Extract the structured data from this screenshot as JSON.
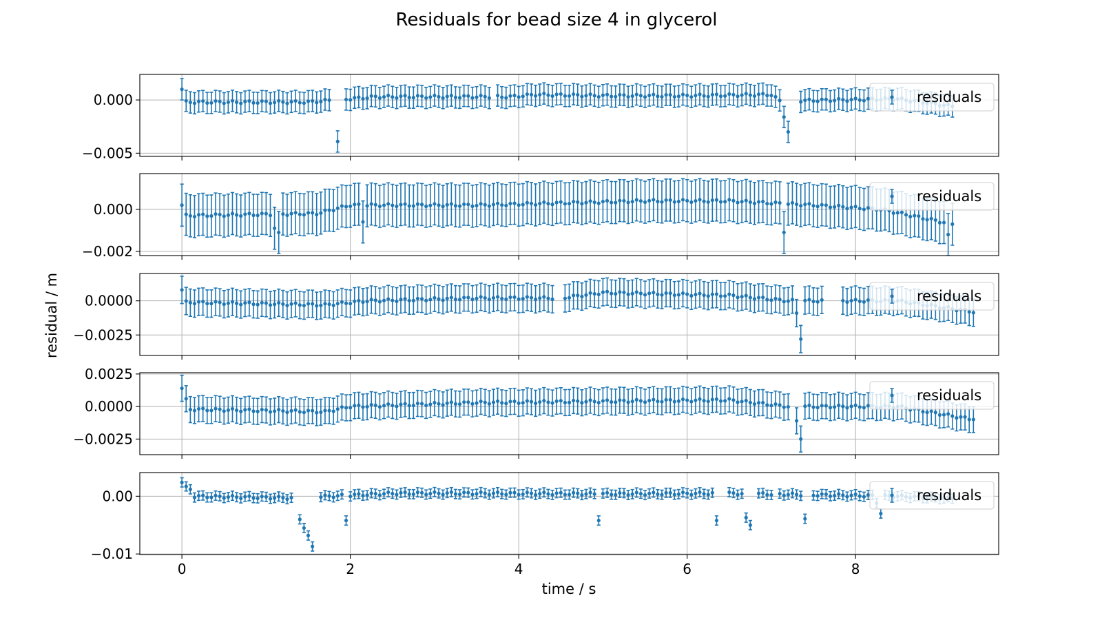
{
  "figure": {
    "title": "Residuals for bead  size 4 in glycerol",
    "xlabel": "time / s",
    "ylabel": "residual / m",
    "colors": {
      "series": "#1f77b4",
      "grid": "#b0b0b0"
    },
    "legend_position": "upper right"
  },
  "chart_data": [
    {
      "type": "scatter",
      "series": [
        {
          "name": "residuals",
          "style": "errorbar"
        }
      ],
      "xlim": [
        -0.5,
        9.7
      ],
      "ylim": [
        -0.0053,
        0.0024
      ],
      "xticks": [
        0,
        2,
        4,
        6,
        8
      ],
      "xtick_labels": [
        "0",
        "2",
        "4",
        "6",
        "8"
      ],
      "yticks": [
        0.0,
        -0.005
      ],
      "ytick_labels": [
        "0.000",
        "−0.005"
      ],
      "dx": 0.05,
      "t_end": 9.15,
      "err": 0.001,
      "base": 0.0,
      "baseline_pts": [
        [
          0,
          -0.0002
        ],
        [
          1.5,
          -0.0002
        ],
        [
          2.3,
          0.0003
        ],
        [
          3.9,
          0.0003
        ],
        [
          4.2,
          0.0005
        ],
        [
          5,
          0.0004
        ],
        [
          6,
          0.0004
        ],
        [
          7.0,
          0.0005
        ],
        [
          7.1,
          -0.0001
        ],
        [
          8.5,
          0.0001
        ],
        [
          9.15,
          -0.0006
        ]
      ],
      "points": [
        [
          0.0,
          0.001
        ],
        [
          1.85,
          -0.0039
        ],
        [
          7.15,
          -0.0016
        ],
        [
          7.2,
          -0.003
        ]
      ],
      "gaps": [
        [
          1.8,
          1.84
        ],
        [
          1.86,
          1.92
        ],
        [
          3.66,
          3.73
        ],
        [
          7.22,
          7.33
        ]
      ]
    },
    {
      "type": "scatter",
      "series": [
        {
          "name": "residuals",
          "style": "errorbar"
        }
      ],
      "xlim": [
        -0.5,
        9.7
      ],
      "ylim": [
        -0.0022,
        0.0017
      ],
      "xticks": [
        0,
        2,
        4,
        6,
        8
      ],
      "xtick_labels": [
        "0",
        "2",
        "4",
        "6",
        "8"
      ],
      "yticks": [
        0.0,
        -0.002
      ],
      "ytick_labels": [
        "0.000",
        "−0.002"
      ],
      "dx": 0.05,
      "t_end": 9.15,
      "err": 0.001,
      "base": 0.0,
      "baseline_pts": [
        [
          0,
          -0.0003
        ],
        [
          1.6,
          -0.0002
        ],
        [
          2.0,
          0.0002
        ],
        [
          3.5,
          0.0002
        ],
        [
          5.5,
          0.0004
        ],
        [
          6.5,
          0.0004
        ],
        [
          7.5,
          0.0002
        ],
        [
          8.3,
          0.0
        ],
        [
          9.15,
          -0.0007
        ]
      ],
      "points": [
        [
          0.0,
          0.0002
        ],
        [
          1.1,
          -0.0009
        ],
        [
          1.15,
          -0.0011
        ],
        [
          2.15,
          -0.0006
        ],
        [
          7.15,
          -0.0011
        ],
        [
          9.1,
          -0.0012
        ]
      ],
      "gaps": []
    },
    {
      "type": "scatter",
      "series": [
        {
          "name": "residuals",
          "style": "errorbar"
        }
      ],
      "xlim": [
        -0.5,
        9.7
      ],
      "ylim": [
        -0.004,
        0.002
      ],
      "xticks": [
        0,
        2,
        4,
        6,
        8
      ],
      "xtick_labels": [
        "0",
        "2",
        "4",
        "6",
        "8"
      ],
      "yticks": [
        0.0,
        -0.0025
      ],
      "ytick_labels": [
        "0.0000",
        "−0.0025"
      ],
      "dx": 0.05,
      "t_end": 9.4,
      "err": 0.001,
      "base": 0.0,
      "baseline_pts": [
        [
          0,
          -0.0001
        ],
        [
          1.7,
          -0.0003
        ],
        [
          2.2,
          0.0
        ],
        [
          3.5,
          0.0002
        ],
        [
          4.5,
          0.0002
        ],
        [
          5.0,
          0.0006
        ],
        [
          6.5,
          0.0004
        ],
        [
          7.2,
          0.0
        ],
        [
          8.5,
          0.0
        ],
        [
          9.4,
          -0.0008
        ]
      ],
      "points": [
        [
          0.0,
          0.0008
        ],
        [
          7.3,
          -0.0009
        ],
        [
          7.35,
          -0.0028
        ]
      ],
      "gaps": [
        [
          4.43,
          4.52
        ],
        [
          7.62,
          7.8
        ]
      ]
    },
    {
      "type": "scatter",
      "series": [
        {
          "name": "residuals",
          "style": "errorbar"
        }
      ],
      "xlim": [
        -0.5,
        9.7
      ],
      "ylim": [
        -0.0037,
        0.0026
      ],
      "xticks": [
        0,
        2,
        4,
        6,
        8
      ],
      "xtick_labels": [
        "0",
        "2",
        "4",
        "6",
        "8"
      ],
      "yticks": [
        0.0025,
        0.0,
        -0.0025
      ],
      "ytick_labels": [
        "0.0025",
        "0.0000",
        "−0.0025"
      ],
      "dx": 0.05,
      "t_end": 9.4,
      "err": 0.001,
      "base": 0.0,
      "baseline_pts": [
        [
          0,
          -0.0002
        ],
        [
          1.7,
          -0.0004
        ],
        [
          2.0,
          0.0
        ],
        [
          3.5,
          0.0003
        ],
        [
          5.0,
          0.0004
        ],
        [
          6.5,
          0.0005
        ],
        [
          7.2,
          0.0
        ],
        [
          8.5,
          0.0
        ],
        [
          9.4,
          -0.001
        ]
      ],
      "points": [
        [
          0.0,
          0.0014
        ],
        [
          0.05,
          0.0006
        ],
        [
          7.3,
          -0.0011
        ],
        [
          7.35,
          -0.0025
        ],
        [
          9.4,
          -0.001
        ]
      ],
      "gaps": [
        [
          7.22,
          7.28
        ]
      ]
    },
    {
      "type": "scatter",
      "series": [
        {
          "name": "residuals",
          "style": "errorbar"
        }
      ],
      "xlim": [
        -0.5,
        9.7
      ],
      "ylim": [
        -0.0101,
        0.0041
      ],
      "xticks": [
        0,
        2,
        4,
        6,
        8
      ],
      "xtick_labels": [
        "0",
        "2",
        "4",
        "6",
        "8"
      ],
      "yticks": [
        0.0,
        -0.01
      ],
      "ytick_labels": [
        "0.00",
        "−0.01"
      ],
      "dx": 0.05,
      "t_end": 9.15,
      "err": 0.0008,
      "base": 0.0,
      "baseline_pts": [
        [
          0.1,
          0.0
        ],
        [
          1.3,
          -0.0003
        ],
        [
          1.6,
          -0.0001
        ],
        [
          2.5,
          0.0005
        ],
        [
          3.5,
          0.0005
        ],
        [
          5.0,
          0.0004
        ],
        [
          6.5,
          0.0005
        ],
        [
          8.5,
          0.0
        ],
        [
          9.15,
          -0.0004
        ]
      ],
      "points": [
        [
          0.0,
          0.0024
        ],
        [
          0.05,
          0.0017
        ],
        [
          0.1,
          0.0012
        ],
        [
          1.4,
          -0.004
        ],
        [
          1.45,
          -0.0055
        ],
        [
          1.5,
          -0.0068
        ],
        [
          1.55,
          -0.0087
        ],
        [
          1.95,
          -0.0042
        ],
        [
          4.95,
          -0.0042
        ],
        [
          6.35,
          -0.0042
        ],
        [
          6.7,
          -0.0037
        ],
        [
          6.75,
          -0.005
        ],
        [
          7.4,
          -0.0039
        ],
        [
          8.25,
          -0.0012
        ],
        [
          8.3,
          -0.003
        ]
      ],
      "gaps": [
        [
          1.33,
          1.37
        ],
        [
          1.57,
          1.6
        ],
        [
          1.92,
          1.94
        ],
        [
          1.96,
          1.98
        ],
        [
          4.92,
          4.94
        ],
        [
          4.96,
          4.98
        ],
        [
          6.32,
          6.34
        ],
        [
          6.36,
          6.48
        ],
        [
          6.68,
          6.69
        ],
        [
          6.72,
          6.74
        ],
        [
          6.77,
          6.82
        ],
        [
          7.05,
          7.08
        ],
        [
          7.38,
          7.39
        ],
        [
          7.41,
          7.48
        ]
      ]
    }
  ]
}
